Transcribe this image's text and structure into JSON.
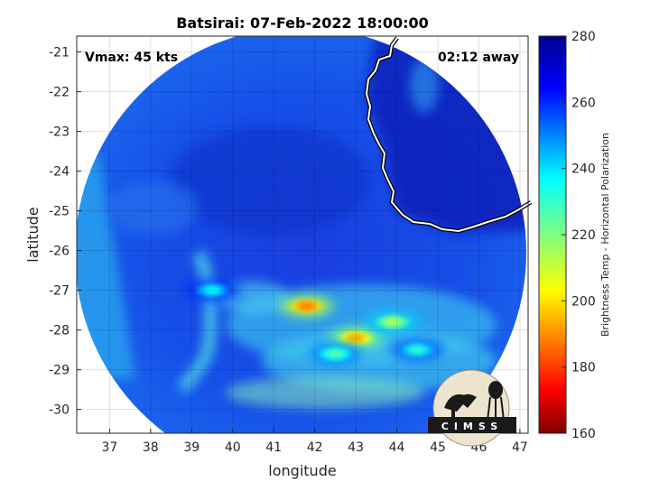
{
  "chart_data": {
    "type": "heatmap",
    "title": "Batsirai: 07-Feb-2022 18:00:00",
    "xlabel": "longitude",
    "ylabel": "latitude",
    "xlim": [
      36.2,
      47.2
    ],
    "ylim": [
      -30.6,
      -20.6
    ],
    "x_ticks": [
      "37",
      "38",
      "39",
      "40",
      "41",
      "42",
      "43",
      "44",
      "45",
      "46",
      "47"
    ],
    "y_ticks": [
      "-21",
      "-22",
      "-23",
      "-24",
      "-25",
      "-26",
      "-27",
      "-28",
      "-29",
      "-30"
    ],
    "grid": true,
    "annotations": {
      "vmax": "Vmax: 45 kts",
      "away": "02:12 away"
    },
    "colorbar": {
      "label": "Brightness Temp - Horizontal Polarization",
      "range": [
        160,
        280
      ],
      "ticks": [
        "280",
        "260",
        "240",
        "220",
        "200",
        "180",
        "160"
      ],
      "colormap": "jet"
    },
    "cold_regions": [
      {
        "lon": 41.8,
        "lat": -27.4,
        "temp": 190
      },
      {
        "lon": 43.0,
        "lat": -28.2,
        "temp": 195
      },
      {
        "lon": 43.9,
        "lat": -27.8,
        "temp": 215
      },
      {
        "lon": 39.5,
        "lat": -27.0,
        "temp": 235
      },
      {
        "lon": 42.5,
        "lat": -28.6,
        "temp": 225
      },
      {
        "lon": 44.5,
        "lat": -28.5,
        "temp": 230
      }
    ],
    "logo_text": "CIMSS"
  }
}
